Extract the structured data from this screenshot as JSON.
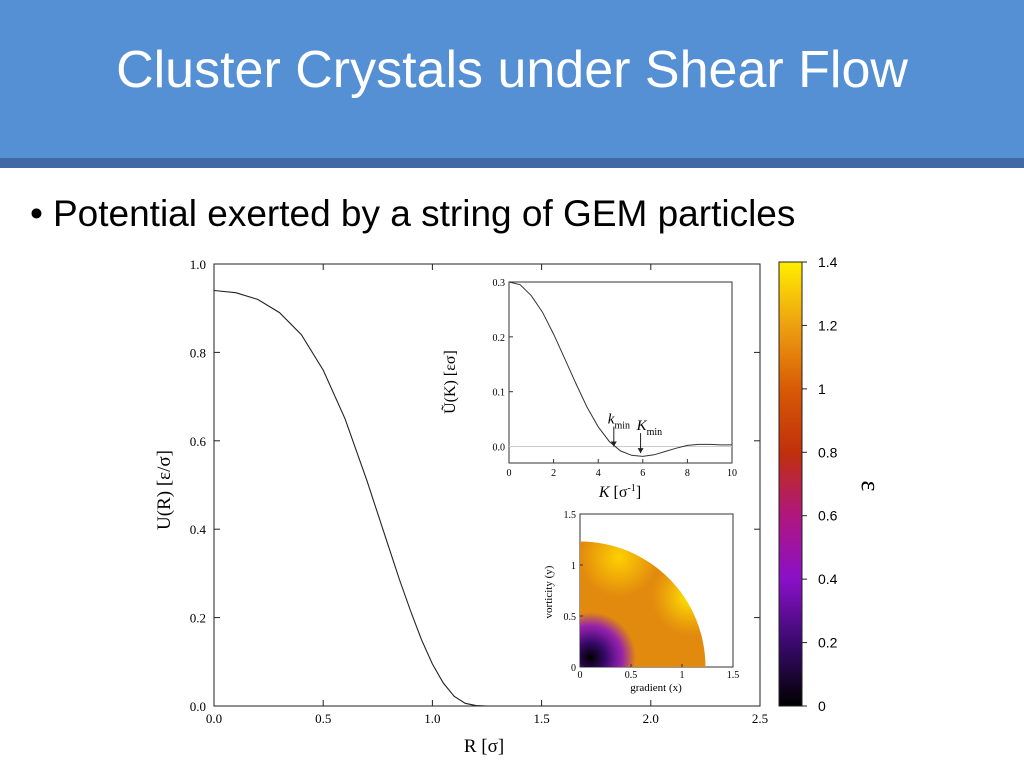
{
  "slide": {
    "title": "Cluster Crystals under Shear Flow",
    "bullet_symbol": "•",
    "bullet": "Potential exerted by a string of GEM particles"
  },
  "chart_data": [
    {
      "type": "line",
      "title": "",
      "xlabel": "R [σ]",
      "ylabel": "U(R)  [ε/σ]",
      "xlim": [
        0,
        2.5
      ],
      "ylim": [
        0,
        1.0
      ],
      "xticks": [
        "0.0",
        "0.5",
        "1.0",
        "1.5",
        "2.0",
        "2.5"
      ],
      "yticks": [
        "0.0",
        "0.2",
        "0.4",
        "0.6",
        "0.8",
        "1.0"
      ],
      "series": [
        {
          "x": [
            0,
            0.1,
            0.2,
            0.3,
            0.4,
            0.5,
            0.6,
            0.7,
            0.8,
            0.85,
            0.9,
            0.95,
            1.0,
            1.05,
            1.1,
            1.15,
            1.2,
            1.25,
            1.3,
            1.5,
            2.0,
            2.5
          ],
          "y": [
            0.94,
            0.935,
            0.92,
            0.89,
            0.84,
            0.76,
            0.65,
            0.51,
            0.36,
            0.285,
            0.215,
            0.15,
            0.095,
            0.052,
            0.022,
            0.006,
            0.001,
            0.0,
            0.0,
            0.0,
            0.0,
            0.0
          ]
        }
      ],
      "color": "#222222"
    },
    {
      "type": "line",
      "title": "",
      "xlabel": "K [σ-1]",
      "ylabel": "Ũ(K)  [εσ]",
      "xlim": [
        0,
        10
      ],
      "ylim": [
        -0.03,
        0.3
      ],
      "xticks": [
        "0",
        "2",
        "4",
        "6",
        "8",
        "10"
      ],
      "yticks": [
        "0.0",
        "0.1",
        "0.2",
        "0.3"
      ],
      "series": [
        {
          "x": [
            0,
            0.5,
            1,
            1.5,
            2,
            2.5,
            3,
            3.5,
            4,
            4.5,
            5,
            5.5,
            6,
            6.5,
            7,
            7.5,
            8,
            8.5,
            9,
            9.5,
            10
          ],
          "y": [
            0.3,
            0.295,
            0.275,
            0.245,
            0.205,
            0.16,
            0.115,
            0.072,
            0.036,
            0.009,
            -0.008,
            -0.016,
            -0.018,
            -0.015,
            -0.009,
            -0.003,
            0.002,
            0.004,
            0.004,
            0.003,
            0.003
          ]
        }
      ],
      "annotations": [
        {
          "label": "k",
          "sub": "min",
          "x": 4.7
        },
        {
          "label": "K",
          "sub": "min",
          "x": 5.9
        }
      ]
    },
    {
      "type": "heatmap",
      "title": "",
      "xlabel": "gradient (x)",
      "ylabel": "vorticity (y)",
      "xlim": [
        0,
        1.5
      ],
      "ylim": [
        0,
        1.5
      ],
      "xticks": [
        "0",
        "0.5",
        "1",
        "1.5"
      ],
      "yticks": [
        "0",
        "0.5",
        "1",
        "1.5"
      ],
      "quarter_circle_radius": 1.23,
      "colorbar": {
        "label": "ε",
        "range": [
          0,
          1.4
        ],
        "ticks": [
          "0",
          "0.2",
          "0.4",
          "0.6",
          "0.8",
          "1",
          "1.2",
          "1.4"
        ],
        "colors": [
          "#000000",
          "#3a0a6e",
          "#8a10c8",
          "#b0167e",
          "#c0300c",
          "#d85a06",
          "#eea010",
          "#ffee00"
        ]
      }
    }
  ]
}
